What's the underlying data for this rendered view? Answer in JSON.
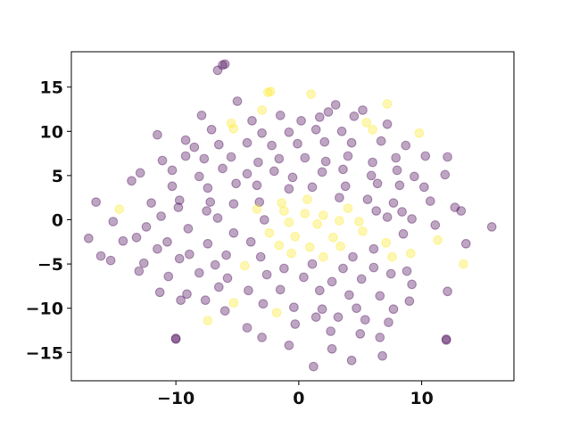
{
  "chart_data": {
    "type": "scatter",
    "title": "",
    "xlabel": "",
    "ylabel": "",
    "xlim": [
      -18.5,
      17.5
    ],
    "ylim": [
      -18.2,
      19.0
    ],
    "xticks": [
      -10,
      0,
      10
    ],
    "yticks": [
      -15,
      -10,
      -5,
      0,
      5,
      10,
      15
    ],
    "grid": false,
    "legend": "none",
    "marker_alpha": 0.35,
    "colors": {
      "class_0": "#440154",
      "class_1": "#fde725"
    },
    "points": [
      [
        -6.2,
        17.5,
        0
      ],
      [
        -6.0,
        17.6,
        0
      ],
      [
        -6.6,
        16.9,
        0
      ],
      [
        -2.3,
        14.5,
        1
      ],
      [
        -2.5,
        14.4,
        1
      ],
      [
        1.0,
        14.2,
        1
      ],
      [
        7.2,
        13.1,
        1
      ],
      [
        -5.0,
        13.4,
        0
      ],
      [
        -3.0,
        12.4,
        1
      ],
      [
        3.0,
        13.0,
        0
      ],
      [
        2.4,
        12.2,
        0
      ],
      [
        5.2,
        12.4,
        0
      ],
      [
        -7.9,
        11.8,
        0
      ],
      [
        -5.5,
        10.9,
        1
      ],
      [
        -3.8,
        11.2,
        0
      ],
      [
        -1.5,
        11.8,
        0
      ],
      [
        0.2,
        11.2,
        0
      ],
      [
        1.7,
        11.6,
        0
      ],
      [
        4.5,
        11.7,
        0
      ],
      [
        5.5,
        11.0,
        1
      ],
      [
        7.2,
        10.8,
        0
      ],
      [
        -11.5,
        9.6,
        0
      ],
      [
        -9.2,
        9.0,
        0
      ],
      [
        -7.1,
        10.2,
        0
      ],
      [
        -5.3,
        10.3,
        1
      ],
      [
        -3.0,
        9.8,
        0
      ],
      [
        -0.8,
        9.9,
        0
      ],
      [
        1.4,
        10.2,
        0
      ],
      [
        3.5,
        10.0,
        0
      ],
      [
        6.0,
        10.2,
        1
      ],
      [
        9.8,
        9.8,
        1
      ],
      [
        -8.5,
        8.2,
        0
      ],
      [
        -6.5,
        8.5,
        0
      ],
      [
        -4.2,
        8.7,
        0
      ],
      [
        -2.2,
        8.4,
        0
      ],
      [
        -0.1,
        8.6,
        0
      ],
      [
        2.1,
        8.8,
        0
      ],
      [
        4.3,
        8.7,
        0
      ],
      [
        6.7,
        8.9,
        0
      ],
      [
        8.7,
        8.4,
        0
      ],
      [
        -11.1,
        6.7,
        0
      ],
      [
        -9.2,
        7.2,
        0
      ],
      [
        -7.7,
        6.9,
        0
      ],
      [
        -5.5,
        7.1,
        0
      ],
      [
        -3.3,
        6.5,
        0
      ],
      [
        -1.6,
        6.9,
        0
      ],
      [
        0.5,
        7.0,
        0
      ],
      [
        2.2,
        6.6,
        0
      ],
      [
        4.0,
        7.2,
        0
      ],
      [
        6.0,
        6.5,
        0
      ],
      [
        7.9,
        7.0,
        0
      ],
      [
        10.3,
        7.2,
        0
      ],
      [
        12.1,
        7.1,
        0
      ],
      [
        -12.9,
        5.3,
        0
      ],
      [
        -10.3,
        5.6,
        0
      ],
      [
        -8.1,
        4.9,
        0
      ],
      [
        -6.2,
        5.8,
        0
      ],
      [
        -4.2,
        5.2,
        0
      ],
      [
        -2.0,
        5.5,
        0
      ],
      [
        -0.5,
        4.8,
        0
      ],
      [
        1.9,
        5.4,
        0
      ],
      [
        3.6,
        5.7,
        0
      ],
      [
        5.9,
        5.0,
        0
      ],
      [
        8.0,
        5.6,
        0
      ],
      [
        9.4,
        4.9,
        0
      ],
      [
        11.9,
        5.1,
        0
      ],
      [
        -13.6,
        4.4,
        0
      ],
      [
        -10.3,
        3.8,
        0
      ],
      [
        -7.4,
        3.6,
        0
      ],
      [
        -5.1,
        4.1,
        0
      ],
      [
        -3.4,
        3.9,
        0
      ],
      [
        -0.8,
        3.5,
        0
      ],
      [
        1.1,
        3.7,
        0
      ],
      [
        3.8,
        3.8,
        0
      ],
      [
        6.4,
        4.1,
        0
      ],
      [
        8.2,
        3.9,
        0
      ],
      [
        10.2,
        3.7,
        0
      ],
      [
        -9.7,
        2.2,
        0
      ],
      [
        -7.2,
        2.0,
        0
      ],
      [
        -5.3,
        1.8,
        0
      ],
      [
        -3.2,
        2.0,
        0
      ],
      [
        -1.4,
        1.9,
        1
      ],
      [
        0.7,
        2.3,
        1
      ],
      [
        3.3,
        2.5,
        0
      ],
      [
        5.6,
        2.3,
        0
      ],
      [
        7.7,
        1.9,
        0
      ],
      [
        10.7,
        2.1,
        0
      ],
      [
        12.7,
        1.4,
        0
      ],
      [
        -16.5,
        2.0,
        0
      ],
      [
        -12.0,
        1.9,
        0
      ],
      [
        -9.8,
        1.4,
        0
      ],
      [
        -7.5,
        1.0,
        0
      ],
      [
        -3.4,
        1.2,
        1
      ],
      [
        -1.2,
        1.0,
        1
      ],
      [
        0.5,
        0.7,
        1
      ],
      [
        2.0,
        0.5,
        1
      ],
      [
        4.0,
        1.3,
        1
      ],
      [
        6.3,
        1.0,
        0
      ],
      [
        8.4,
        0.9,
        0
      ],
      [
        -14.6,
        1.2,
        1
      ],
      [
        -11.2,
        0.4,
        0
      ],
      [
        -6.6,
        0.2,
        0
      ],
      [
        -2.8,
        0.0,
        0
      ],
      [
        -0.8,
        -0.3,
        1
      ],
      [
        1.5,
        -0.5,
        1
      ],
      [
        3.3,
        -0.1,
        1
      ],
      [
        4.9,
        -0.2,
        1
      ],
      [
        7.2,
        0.3,
        0
      ],
      [
        9.2,
        0.1,
        0
      ],
      [
        13.2,
        1.0,
        0
      ],
      [
        15.7,
        -0.8,
        0
      ],
      [
        -15.1,
        -0.2,
        0
      ],
      [
        -12.4,
        -0.8,
        0
      ],
      [
        -9.0,
        -1.0,
        0
      ],
      [
        -5.3,
        -1.5,
        0
      ],
      [
        -2.4,
        -1.5,
        1
      ],
      [
        -0.3,
        -1.9,
        1
      ],
      [
        2.8,
        -2.0,
        1
      ],
      [
        5.2,
        -1.3,
        1
      ],
      [
        8.5,
        -1.6,
        0
      ],
      [
        11.1,
        -0.6,
        0
      ],
      [
        -13.2,
        -2.0,
        0
      ],
      [
        -10.7,
        -2.5,
        0
      ],
      [
        -7.4,
        -2.7,
        0
      ],
      [
        -3.9,
        -2.5,
        0
      ],
      [
        -1.6,
        -2.9,
        1
      ],
      [
        0.9,
        -3.1,
        1
      ],
      [
        3.4,
        -3.0,
        1
      ],
      [
        6.1,
        -3.3,
        0
      ],
      [
        7.1,
        -2.6,
        1
      ],
      [
        13.6,
        -2.7,
        0
      ],
      [
        -17.1,
        -2.1,
        0
      ],
      [
        -14.3,
        -2.4,
        0
      ],
      [
        -11.5,
        -3.3,
        0
      ],
      [
        -8.9,
        -3.9,
        0
      ],
      [
        -5.9,
        -4.0,
        0
      ],
      [
        -3.1,
        -4.2,
        0
      ],
      [
        -0.6,
        -3.8,
        1
      ],
      [
        2.0,
        -4.2,
        1
      ],
      [
        4.4,
        -4.2,
        0
      ],
      [
        7.6,
        -4.2,
        1
      ],
      [
        9.1,
        -3.8,
        1
      ],
      [
        11.3,
        -2.3,
        1
      ],
      [
        -15.3,
        -4.6,
        0
      ],
      [
        -12.6,
        -4.9,
        0
      ],
      [
        -9.7,
        -4.4,
        0
      ],
      [
        -6.8,
        -5.1,
        0
      ],
      [
        -4.4,
        -5.2,
        1
      ],
      [
        -1.2,
        -5.5,
        0
      ],
      [
        1.1,
        -5.0,
        0
      ],
      [
        3.6,
        -5.5,
        0
      ],
      [
        6.1,
        -5.4,
        0
      ],
      [
        8.8,
        -5.8,
        0
      ],
      [
        -16.1,
        -4.1,
        0
      ],
      [
        -13.0,
        -5.8,
        0
      ],
      [
        -10.6,
        -6.4,
        0
      ],
      [
        -8.1,
        -6.0,
        0
      ],
      [
        -5.8,
        -6.6,
        0
      ],
      [
        -2.6,
        -6.2,
        0
      ],
      [
        0.4,
        -6.5,
        0
      ],
      [
        2.7,
        -7.0,
        0
      ],
      [
        5.1,
        -6.7,
        0
      ],
      [
        7.5,
        -6.1,
        0
      ],
      [
        9.2,
        -7.3,
        0
      ],
      [
        13.4,
        -5.0,
        1
      ],
      [
        -11.3,
        -8.2,
        0
      ],
      [
        -9.1,
        -8.4,
        0
      ],
      [
        -6.5,
        -7.6,
        0
      ],
      [
        -4.1,
        -8.0,
        0
      ],
      [
        -1.5,
        -7.9,
        0
      ],
      [
        1.7,
        -8.0,
        0
      ],
      [
        4.1,
        -8.5,
        0
      ],
      [
        6.6,
        -8.6,
        0
      ],
      [
        9.0,
        -9.2,
        0
      ],
      [
        12.1,
        -8.1,
        0
      ],
      [
        -7.6,
        -9.1,
        0
      ],
      [
        -5.3,
        -9.4,
        1
      ],
      [
        -2.9,
        -9.5,
        0
      ],
      [
        -0.4,
        -9.9,
        0
      ],
      [
        1.9,
        -10.1,
        0
      ],
      [
        4.7,
        -10.0,
        0
      ],
      [
        7.7,
        -10.1,
        0
      ],
      [
        -9.6,
        -9.1,
        0
      ],
      [
        -6.0,
        -10.3,
        0
      ],
      [
        -1.8,
        -10.5,
        1
      ],
      [
        1.4,
        -11.0,
        0
      ],
      [
        3.2,
        -11.0,
        0
      ],
      [
        5.4,
        -11.3,
        0
      ],
      [
        7.3,
        -11.6,
        0
      ],
      [
        -7.4,
        -11.4,
        1
      ],
      [
        -4.2,
        -12.2,
        0
      ],
      [
        -0.3,
        -11.8,
        0
      ],
      [
        2.6,
        -12.6,
        0
      ],
      [
        5.0,
        -12.9,
        0
      ],
      [
        6.6,
        -13.3,
        0
      ],
      [
        -3.0,
        -13.3,
        0
      ],
      [
        -10.0,
        -13.5,
        0
      ],
      [
        -10.0,
        -13.4,
        0
      ],
      [
        12.0,
        -13.6,
        0
      ],
      [
        12.0,
        -13.5,
        0
      ],
      [
        -0.8,
        -14.2,
        0
      ],
      [
        2.7,
        -14.6,
        0
      ],
      [
        4.3,
        -15.9,
        0
      ],
      [
        6.8,
        -15.4,
        0
      ],
      [
        1.2,
        -16.6,
        0
      ]
    ]
  }
}
